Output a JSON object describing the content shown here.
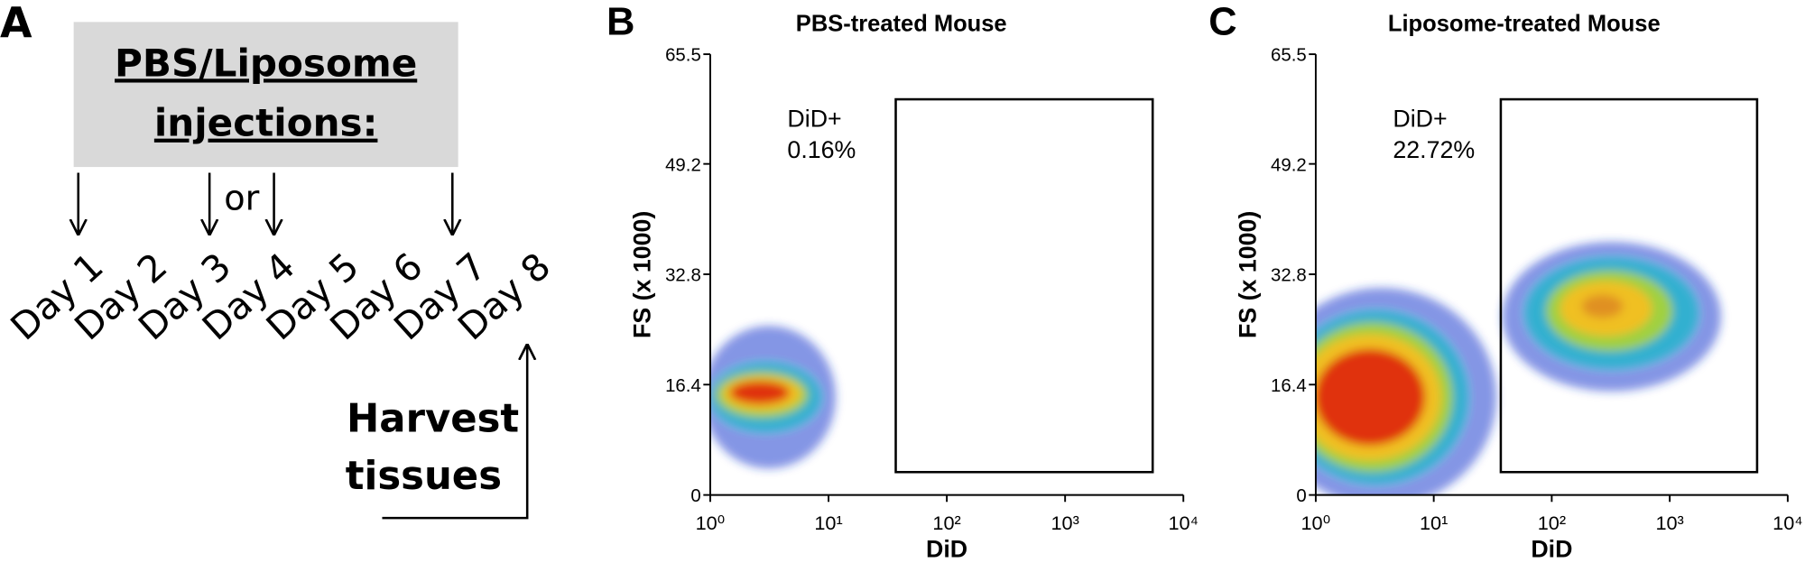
{
  "diagram": {
    "panel_label": "A",
    "box_text": [
      "PBS/Liposome",
      "injections:"
    ],
    "connector": "or",
    "days": [
      "Day 1",
      "Day 2",
      "Day 3",
      "Day 4",
      "Day 5",
      "Day 6",
      "Day 7",
      "Day 8"
    ],
    "harvest": [
      "Harvest",
      "tissues"
    ]
  },
  "chart_data": [
    {
      "type": "density",
      "panel_label": "B",
      "title": "PBS-treated Mouse",
      "x_label": "DiD",
      "y_label": "FS (x 1000)",
      "x_scale": "log",
      "xlim": [
        1,
        10000
      ],
      "xticks": [
        {
          "value": 1,
          "label": "10⁰"
        },
        {
          "value": 10,
          "label": "10¹"
        },
        {
          "value": 100,
          "label": "10²"
        },
        {
          "value": 1000,
          "label": "10³"
        },
        {
          "value": 10000,
          "label": "10⁴"
        }
      ],
      "ylim": [
        0,
        65.5
      ],
      "yticks": [
        0,
        16.4,
        32.8,
        49.2,
        65.5
      ],
      "gate": {
        "label": "DiD+",
        "value": 0.16,
        "value_label": "0.16%",
        "x": [
          37,
          5500
        ],
        "y": [
          3.4,
          58.8
        ]
      }
    },
    {
      "type": "density",
      "panel_label": "C",
      "title": "Liposome-treated Mouse",
      "x_label": "DiD",
      "y_label": "FS (x 1000)",
      "x_scale": "log",
      "xlim": [
        1,
        10000
      ],
      "xticks": [
        {
          "value": 1,
          "label": "10⁰"
        },
        {
          "value": 10,
          "label": "10¹"
        },
        {
          "value": 100,
          "label": "10²"
        },
        {
          "value": 1000,
          "label": "10³"
        },
        {
          "value": 10000,
          "label": "10⁴"
        }
      ],
      "ylim": [
        0,
        65.5
      ],
      "yticks": [
        0,
        16.4,
        32.8,
        49.2,
        65.5
      ],
      "gate": {
        "label": "DiD+",
        "value": 22.72,
        "value_label": "22.72%",
        "x": [
          37,
          5500
        ],
        "y": [
          3.4,
          58.8
        ]
      }
    }
  ]
}
